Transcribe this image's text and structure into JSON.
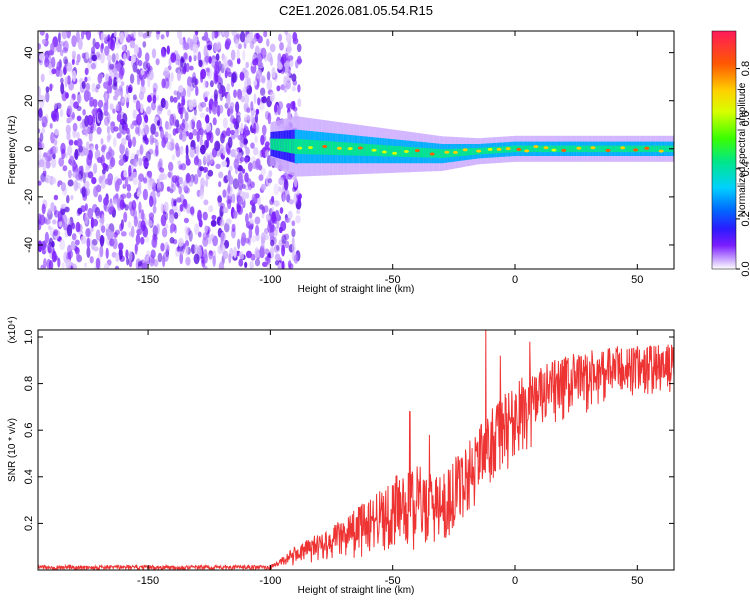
{
  "title": "C2E1.2026.081.05.54.R15",
  "chart_data": [
    {
      "type": "heatmap",
      "name": "spectrogram",
      "xlabel": "Height of straight line (km)",
      "ylabel": "Frequency (Hz)",
      "xlim": [
        -195,
        65
      ],
      "ylim": [
        -50,
        49
      ],
      "xticks": [
        -150,
        -100,
        -50,
        0,
        50
      ],
      "yticks": [
        -40,
        -20,
        0,
        20,
        40
      ],
      "colorbar": {
        "label": "Normalized spectral amplitude",
        "range": [
          0,
          0.95
        ],
        "ticks": [
          0.0,
          0.2,
          0.4,
          0.6,
          0.8
        ]
      },
      "noise_region_x": [
        -195,
        -88
      ],
      "signal_band": [
        {
          "x": -100,
          "freq": 2,
          "width": 5
        },
        {
          "x": -90,
          "freq": 1,
          "width": 7
        },
        {
          "x": -70,
          "freq": 0,
          "width": 6
        },
        {
          "x": -50,
          "freq": -1,
          "width": 5
        },
        {
          "x": -30,
          "freq": -2,
          "width": 4
        },
        {
          "x": -15,
          "freq": -1,
          "width": 3
        },
        {
          "x": 0,
          "freq": 0,
          "width": 3
        },
        {
          "x": 30,
          "freq": 0,
          "width": 3
        },
        {
          "x": 65,
          "freq": 0,
          "width": 3
        }
      ]
    },
    {
      "type": "line",
      "name": "snr",
      "xlabel": "Height of straight line (km)",
      "ylabel": "SNR (10 * v/v)",
      "scale_label": "(x10⁴)",
      "xlim": [
        -195,
        65
      ],
      "ylim": [
        0,
        1.03
      ],
      "xticks": [
        -150,
        -100,
        -50,
        0,
        50
      ],
      "yticks": [
        0.2,
        0.4,
        0.6,
        0.8,
        1.0
      ],
      "color": "#ee3333",
      "envelope": [
        {
          "x": -195,
          "low": 0.0,
          "high": 0.02
        },
        {
          "x": -100,
          "low": 0.0,
          "high": 0.02
        },
        {
          "x": -90,
          "low": 0.02,
          "high": 0.1
        },
        {
          "x": -70,
          "low": 0.05,
          "high": 0.22
        },
        {
          "x": -50,
          "low": 0.05,
          "high": 0.4
        },
        {
          "x": -40,
          "low": 0.08,
          "high": 0.45
        },
        {
          "x": -30,
          "low": 0.1,
          "high": 0.4
        },
        {
          "x": -20,
          "low": 0.2,
          "high": 0.55
        },
        {
          "x": -15,
          "low": 0.28,
          "high": 0.62
        },
        {
          "x": -5,
          "low": 0.4,
          "high": 0.75
        },
        {
          "x": 5,
          "low": 0.5,
          "high": 0.85
        },
        {
          "x": 20,
          "low": 0.62,
          "high": 0.92
        },
        {
          "x": 40,
          "low": 0.72,
          "high": 0.96
        },
        {
          "x": 65,
          "low": 0.75,
          "high": 0.97
        }
      ],
      "spikes": [
        {
          "x": -43,
          "value": 0.68
        },
        {
          "x": -35,
          "value": 0.58
        },
        {
          "x": -12,
          "value": 1.03
        },
        {
          "x": -6,
          "value": 0.92
        },
        {
          "x": 6,
          "value": 0.98
        }
      ]
    }
  ]
}
